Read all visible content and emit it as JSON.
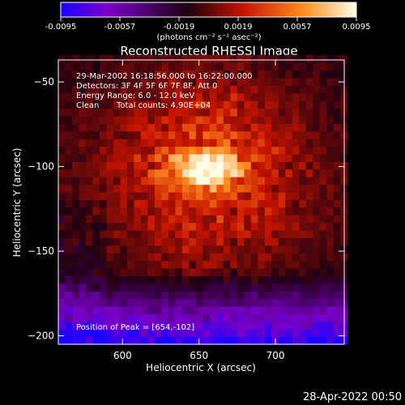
{
  "chart_data": {
    "type": "heatmap",
    "title": "Reconstructed RHESSI Image",
    "xlabel": "Heliocentric X (arcsec)",
    "ylabel": "Heliocentric Y (arcsec)",
    "xlim": [
      558,
      745
    ],
    "ylim": [
      -205,
      -37
    ],
    "x_ticks": [
      600,
      650,
      700
    ],
    "y_ticks": [
      -200,
      -150,
      -100,
      -50
    ],
    "colorbar": {
      "ticks": [
        "-0.0095",
        "-0.0057",
        "-0.0019",
        "0.0019",
        "0.0057",
        "0.0095"
      ],
      "min": -0.0095,
      "max": 0.0095,
      "units_label": "(photons cm⁻² s⁻¹ asec⁻²)",
      "colors": [
        "#1a00ff",
        "#7a00c8",
        "#1e0010",
        "#c81400",
        "#ff8c1e",
        "#ffffe6"
      ]
    },
    "annotations": {
      "line1": "29-Mar-2002 16:18:56.000 to 16:22:00.000",
      "line2": "Detectors: 3F 4F 5F 6F 7F 8F, Att 0",
      "line3": "Energy Range: 6.0 - 12.0 keV",
      "line4_a": "Clean",
      "line4_b": "Total counts: 4.90E+04",
      "peak": "Position of Peak = [654,-102]"
    },
    "peak": {
      "x": 654,
      "y": -102,
      "value": 0.0095
    }
  },
  "timestamp": "28-Apr-2022 00:50"
}
